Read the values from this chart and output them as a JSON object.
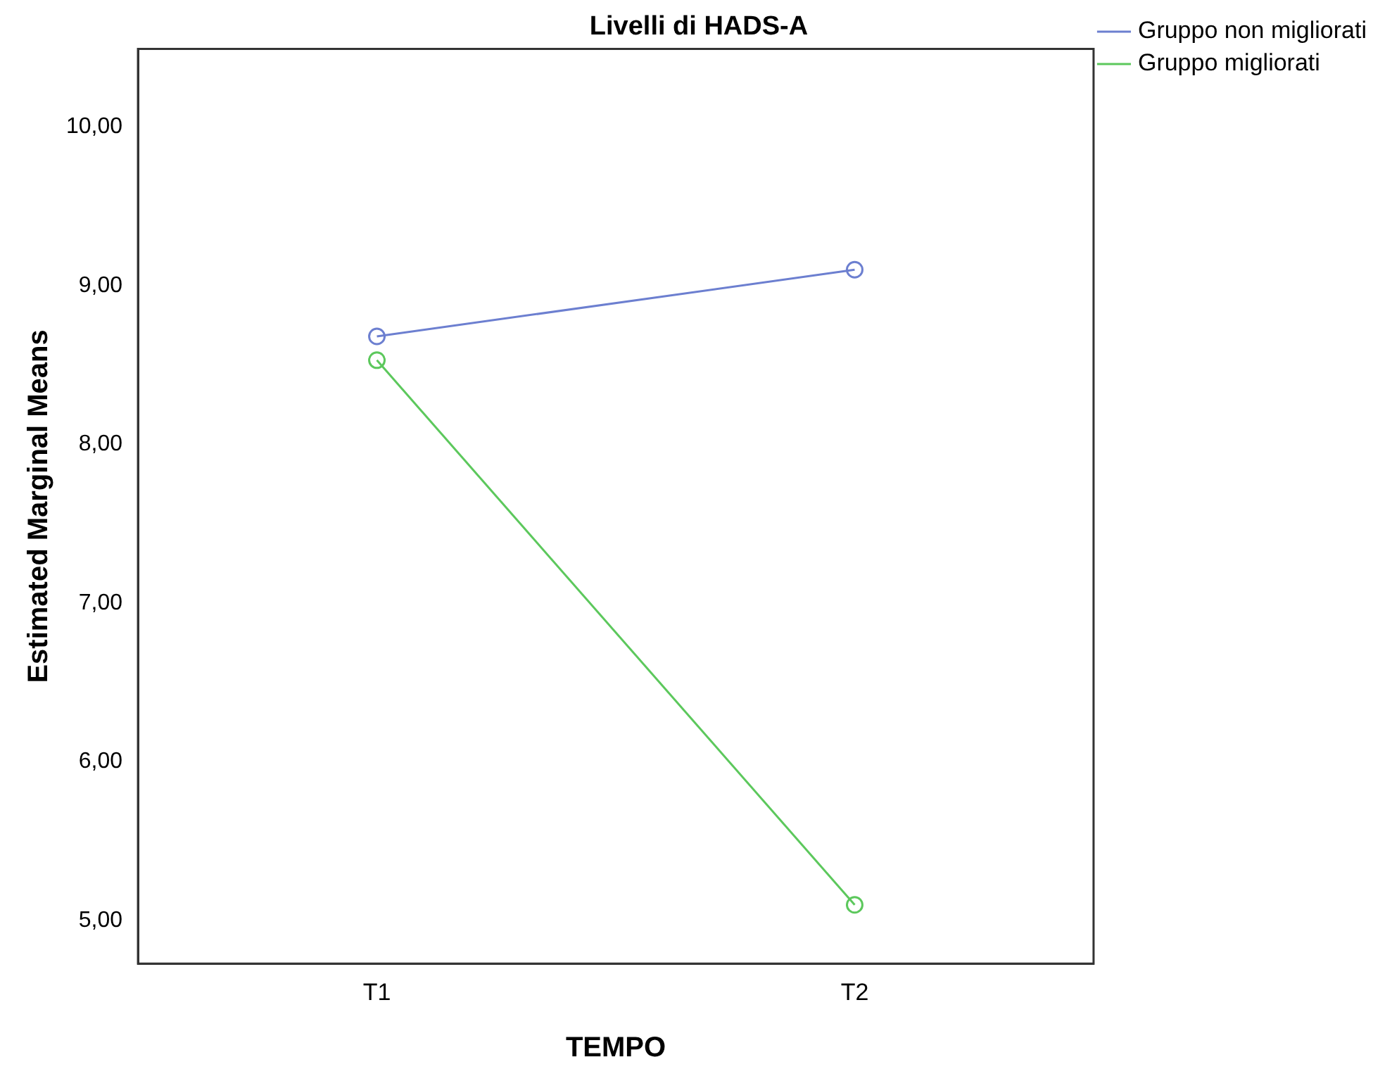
{
  "chart_data": {
    "type": "line",
    "title": "Livelli di HADS-A",
    "xlabel": "TEMPO",
    "ylabel": "Estimated Marginal Means",
    "categories": [
      "T1",
      "T2"
    ],
    "series": [
      {
        "name": "Gruppo non migliorati",
        "color": "#6c7fd0",
        "values": [
          8.68,
          9.1
        ]
      },
      {
        "name": "Gruppo migliorati",
        "color": "#5cc85c",
        "values": [
          8.53,
          5.1
        ]
      }
    ],
    "ylim": [
      4.73,
      10.49
    ],
    "yticks": [
      {
        "value": 5,
        "label": "5,00"
      },
      {
        "value": 6,
        "label": "6,00"
      },
      {
        "value": 7,
        "label": "7,00"
      },
      {
        "value": 8,
        "label": "8,00"
      },
      {
        "value": 9,
        "label": "9,00"
      },
      {
        "value": 10,
        "label": "10,00"
      }
    ],
    "grid": false,
    "legend": "top right",
    "marker": "circle",
    "line_style": "solid"
  }
}
